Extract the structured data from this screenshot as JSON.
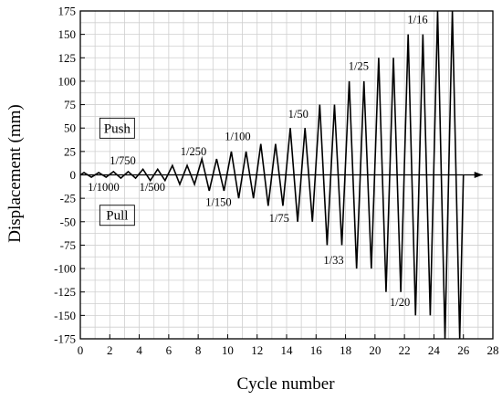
{
  "chart_data": {
    "type": "line",
    "xlabel": "Cycle number",
    "ylabel": "Displacement (mm)",
    "xlim": [
      0,
      28
    ],
    "ylim": [
      -175,
      175
    ],
    "x_ticks": [
      "0",
      "2",
      "4",
      "6",
      "8",
      "10",
      "12",
      "14",
      "16",
      "18",
      "20",
      "22",
      "24",
      "26",
      "28"
    ],
    "y_ticks": [
      "175",
      "150",
      "125",
      "100",
      "75",
      "50",
      "25",
      "0",
      "-25",
      "-50",
      "-75",
      "-100",
      "-125",
      "-150",
      "-175"
    ],
    "grid": true,
    "series": [
      {
        "x": [
          0,
          0.25,
          0.75,
          1.25,
          1.75,
          2.25,
          2.75,
          3.25,
          3.75,
          4.25,
          4.75,
          5.25,
          5.75,
          6.25,
          6.75,
          7.25,
          7.75,
          8.25,
          8.75,
          9.25,
          9.75,
          10.25,
          10.75,
          11.25,
          11.75,
          12.25,
          12.75,
          13.25,
          13.75,
          14.25,
          14.75,
          15.25,
          15.75,
          16.25,
          16.75,
          17.25,
          17.75,
          18.25,
          18.75,
          19.25,
          19.75,
          20.25,
          20.75,
          21.25,
          21.75,
          22.25,
          22.75,
          23.25,
          23.75,
          24.25,
          24.75,
          25.25,
          25.75,
          26.0
        ],
        "y": [
          0,
          2.5,
          -2.5,
          2.5,
          -2.5,
          3.5,
          -3.5,
          3.5,
          -3.5,
          6,
          -6,
          6,
          -6,
          10,
          -10,
          10,
          -10,
          17,
          -17,
          17,
          -17,
          25,
          -25,
          25,
          -25,
          33,
          -33,
          33,
          -33,
          50,
          -50,
          50,
          -50,
          75,
          -75,
          75,
          -75,
          100,
          -100,
          100,
          -100,
          125,
          -125,
          125,
          -125,
          150,
          -150,
          150,
          -150,
          175,
          -175,
          175,
          -175,
          0
        ]
      }
    ],
    "annotations": [
      {
        "text": "1/1000",
        "x": 0.5,
        "y": -17
      },
      {
        "text": "1/750",
        "x": 2.0,
        "y": 11
      },
      {
        "text": "1/500",
        "x": 4.0,
        "y": -17
      },
      {
        "text": "1/250",
        "x": 6.8,
        "y": 21
      },
      {
        "text": "1/150",
        "x": 8.5,
        "y": -33
      },
      {
        "text": "1/100",
        "x": 9.8,
        "y": 37
      },
      {
        "text": "1/75",
        "x": 12.8,
        "y": -50
      },
      {
        "text": "1/50",
        "x": 14.1,
        "y": 61
      },
      {
        "text": "1/33",
        "x": 16.5,
        "y": -95
      },
      {
        "text": "1/25",
        "x": 18.2,
        "y": 112
      },
      {
        "text": "1/20",
        "x": 21.0,
        "y": -140
      },
      {
        "text": "1/16",
        "x": 22.2,
        "y": 162
      }
    ],
    "region_labels": [
      {
        "text": "Push",
        "x": 2.5,
        "y": 45
      },
      {
        "text": "Pull",
        "x": 2.5,
        "y": -48
      }
    ]
  }
}
